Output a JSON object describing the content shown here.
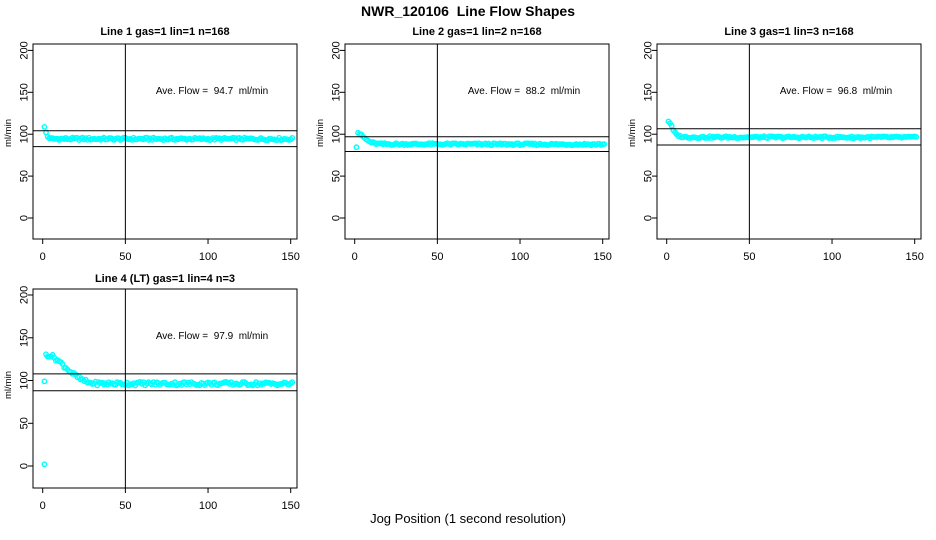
{
  "figure": {
    "title": "NWR_120106  Line Flow Shapes",
    "xlabel": "Jog Position (1 second resolution)",
    "background_color": "#FFFFFF",
    "axis_color": "#000000",
    "point_color": "#00FFFF",
    "layout": "2x3 panel grid, 4 panels used, shared axis style"
  },
  "chart_data": [
    {
      "type": "scatter",
      "title": "Line 1 gas=1 lin=1 n=168",
      "annotation": "Ave. Flow =  94.7  ml/min",
      "ave_flow_ml_min": 94.7,
      "n": 168,
      "ylabel": "ml/min",
      "xlim": [
        0,
        150
      ],
      "ylim": [
        0,
        200
      ],
      "xticks": [
        0,
        50,
        100,
        150
      ],
      "yticks": [
        0,
        50,
        100,
        150,
        200
      ],
      "grid": false,
      "marker": "open-circle",
      "vline_x": 50,
      "hlines_ml_min": [
        104.2,
        85.2
      ],
      "curve_anchors": [
        [
          1,
          108
        ],
        [
          2,
          102
        ],
        [
          3,
          97
        ],
        [
          5,
          94.5
        ],
        [
          151,
          94.3
        ]
      ],
      "noise_amplitude": 1.5,
      "outlier_points": []
    },
    {
      "type": "scatter",
      "title": "Line 2 gas=1 lin=2 n=168",
      "annotation": "Ave. Flow =  88.2  ml/min",
      "ave_flow_ml_min": 88.2,
      "n": 168,
      "ylabel": "ml/min",
      "xlim": [
        0,
        150
      ],
      "ylim": [
        0,
        200
      ],
      "xticks": [
        0,
        50,
        100,
        150
      ],
      "yticks": [
        0,
        50,
        100,
        150,
        200
      ],
      "grid": false,
      "marker": "open-circle",
      "vline_x": 50,
      "hlines_ml_min": [
        97.0,
        79.4
      ],
      "curve_anchors": [
        [
          2,
          102
        ],
        [
          3,
          100.5
        ],
        [
          5,
          97
        ],
        [
          7,
          93.5
        ],
        [
          9,
          91
        ],
        [
          12,
          89
        ],
        [
          16,
          88.2
        ],
        [
          151,
          87.9
        ]
      ],
      "noise_amplitude": 1.2,
      "outlier_points": [
        [
          1,
          84.5
        ]
      ]
    },
    {
      "type": "scatter",
      "title": "Line 3 gas=1 lin=3 n=168",
      "annotation": "Ave. Flow =  96.8  ml/min",
      "ave_flow_ml_min": 96.8,
      "n": 168,
      "ylabel": "ml/min",
      "xlim": [
        0,
        150
      ],
      "ylim": [
        0,
        200
      ],
      "xticks": [
        0,
        50,
        100,
        150
      ],
      "yticks": [
        0,
        50,
        100,
        150,
        200
      ],
      "grid": false,
      "marker": "open-circle",
      "vline_x": 50,
      "hlines_ml_min": [
        106.5,
        87.1
      ],
      "curve_anchors": [
        [
          1,
          115.5
        ],
        [
          2,
          113.5
        ],
        [
          3,
          109
        ],
        [
          4,
          104.5
        ],
        [
          5,
          101.5
        ],
        [
          6,
          99.5
        ],
        [
          8,
          97.5
        ],
        [
          11,
          96.5
        ],
        [
          151,
          96.2
        ]
      ],
      "noise_amplitude": 1.2,
      "outlier_points": []
    },
    {
      "type": "scatter",
      "title": "Line 4 (LT) gas=1 lin=4 n=3",
      "annotation": "Ave. Flow =  97.9  ml/min",
      "ave_flow_ml_min": 97.9,
      "n": 3,
      "ylabel": "ml/min",
      "xlim": [
        0,
        150
      ],
      "ylim": [
        0,
        200
      ],
      "xticks": [
        0,
        50,
        100,
        150
      ],
      "yticks": [
        0,
        50,
        100,
        150,
        200
      ],
      "grid": false,
      "marker": "open-circle",
      "vline_x": 50,
      "hlines_ml_min": [
        107.7,
        88.1
      ],
      "curve_anchors": [
        [
          2,
          130.5
        ],
        [
          3,
          130
        ],
        [
          5,
          129
        ],
        [
          7,
          127
        ],
        [
          9,
          124
        ],
        [
          11,
          120.5
        ],
        [
          13,
          117
        ],
        [
          15,
          113.5
        ],
        [
          17,
          110
        ],
        [
          19,
          107
        ],
        [
          21,
          104
        ],
        [
          23,
          101.5
        ],
        [
          25,
          99.5
        ],
        [
          28,
          97.5
        ],
        [
          32,
          96.5
        ],
        [
          151,
          96.2
        ]
      ],
      "noise_amplitude": 2.2,
      "outlier_points": [
        [
          1,
          2
        ],
        [
          1,
          99
        ]
      ]
    }
  ]
}
